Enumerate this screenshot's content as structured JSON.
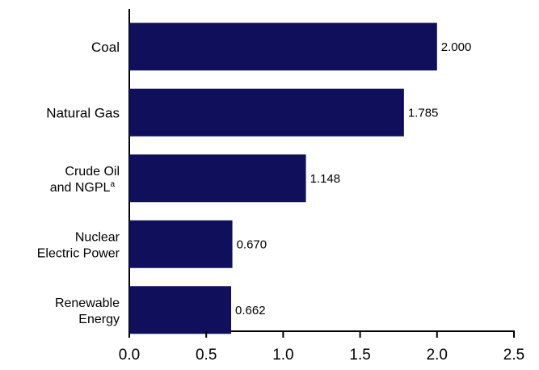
{
  "chart_data": {
    "type": "bar",
    "orientation": "horizontal",
    "categories": [
      {
        "lines": [
          "Coal"
        ],
        "sup": ""
      },
      {
        "lines": [
          "Natural Gas"
        ],
        "sup": ""
      },
      {
        "lines": [
          "Crude Oil",
          "and NGPL"
        ],
        "sup": "a"
      },
      {
        "lines": [
          "Nuclear",
          "Electric Power"
        ],
        "sup": ""
      },
      {
        "lines": [
          "Renewable",
          "Energy"
        ],
        "sup": ""
      }
    ],
    "values": [
      2.0,
      1.785,
      1.148,
      0.67,
      0.662
    ],
    "value_labels": [
      "2.000",
      "1.785",
      "1.148",
      "0.670",
      "0.662"
    ],
    "xlim": [
      0,
      2.5
    ],
    "xticks": [
      "0.0",
      "0.5",
      "1.0",
      "1.5",
      "2.0",
      "2.5"
    ],
    "bar_color": "#0f0f5c",
    "grid": false,
    "legend": "none"
  }
}
